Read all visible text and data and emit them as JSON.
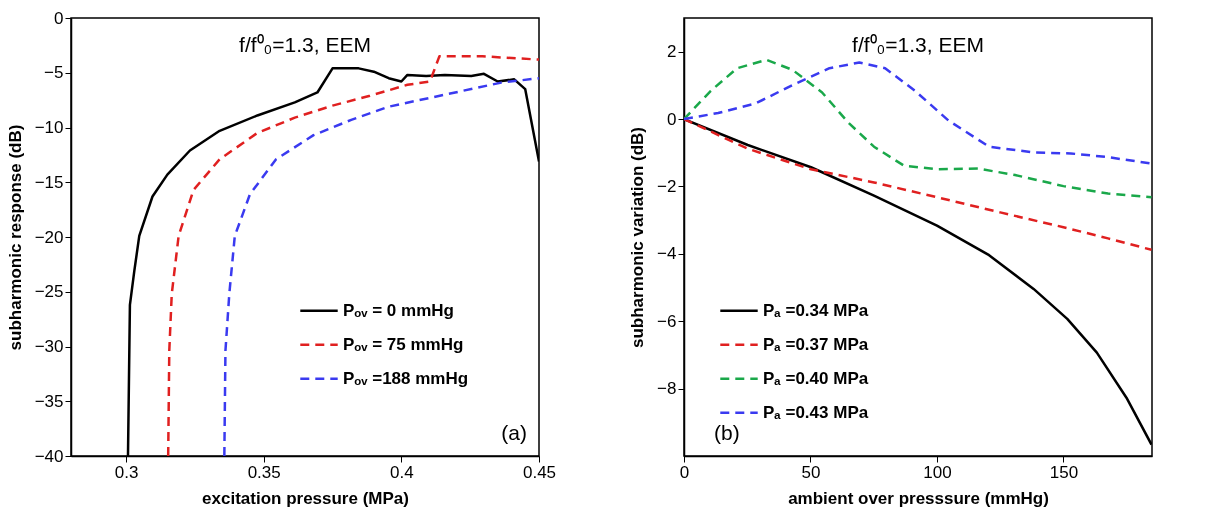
{
  "chart_data": [
    {
      "type": "line",
      "xlabel": "excitation pressure (MPa)",
      "ylabel": "subharmonic response (dB)",
      "xlim": [
        0.28,
        0.45
      ],
      "xticks": [
        0.3,
        0.35,
        0.4,
        0.45
      ],
      "ylim": [
        -40,
        0
      ],
      "yticks": [
        -40,
        -35,
        -30,
        -25,
        -20,
        -15,
        -10,
        -5,
        0
      ],
      "grid": false,
      "legend": "bottom right",
      "annotations": [
        "f/f⁰₀=1.3, EEM",
        "(a)"
      ],
      "series": [
        {
          "name": "Pₒᵥ = 0 mmHg",
          "color": "#000000",
          "line_style": "solid",
          "x": [
            0.3007,
            0.3014,
            0.303,
            0.3048,
            0.3096,
            0.315,
            0.3232,
            0.334,
            0.3477,
            0.3613,
            0.3695,
            0.375,
            0.3845,
            0.39,
            0.3954,
            0.4,
            0.4022,
            0.409,
            0.4158,
            0.4254,
            0.43,
            0.435,
            0.441,
            0.445,
            0.45
          ],
          "values": [
            -40,
            -26.2,
            -23.1,
            -19.9,
            -16.3,
            -14.3,
            -12.1,
            -10.3,
            -8.9,
            -7.7,
            -6.8,
            -4.6,
            -4.6,
            -4.9,
            -5.5,
            -5.8,
            -5.2,
            -5.3,
            -5.2,
            -5.3,
            -5.1,
            -5.8,
            -5.6,
            -6.5,
            -13.1
          ]
        },
        {
          "name": "Pₒᵥ = 75 mmHg",
          "color": "#e02020",
          "line_style": "dashed",
          "x": [
            0.3153,
            0.3157,
            0.3166,
            0.3191,
            0.3245,
            0.334,
            0.3477,
            0.3613,
            0.375,
            0.3886,
            0.4022,
            0.4104,
            0.4138,
            0.4295,
            0.45
          ],
          "values": [
            -40,
            -30.4,
            -25.2,
            -19.9,
            -15.7,
            -12.9,
            -10.5,
            -9.1,
            -8.0,
            -7.1,
            -6.1,
            -5.8,
            -3.5,
            -3.5,
            -3.8
          ]
        },
        {
          "name": "Pₒᵥ =188 mmHg",
          "color": "#3a3af0",
          "line_style": "dashed",
          "x": [
            0.3357,
            0.3361,
            0.3375,
            0.3395,
            0.345,
            0.3545,
            0.3681,
            0.3818,
            0.3954,
            0.4158,
            0.4363,
            0.45
          ],
          "values": [
            -40,
            -30.4,
            -25.2,
            -19.9,
            -16.1,
            -12.9,
            -10.7,
            -9.3,
            -8.1,
            -7.0,
            -5.9,
            -5.5
          ]
        }
      ]
    },
    {
      "type": "line",
      "xlabel": "ambient over presssure (mmHg)",
      "ylabel": "subharmonic variation (dB)",
      "xlim": [
        0,
        185
      ],
      "xticks": [
        0,
        50,
        100,
        150
      ],
      "ylim": [
        -10,
        3
      ],
      "yticks": [
        -8,
        -6,
        -4,
        -2,
        0,
        2
      ],
      "grid": false,
      "legend": "bottom left",
      "annotations": [
        "f/f⁰₀=1.3, EEM",
        "(b)"
      ],
      "series": [
        {
          "name": "Pₐ =0.34 MPa",
          "color": "#000000",
          "line_style": "solid",
          "x": [
            0,
            25.2,
            50.2,
            75.1,
            100,
            120.6,
            138.2,
            151.5,
            163.2,
            174.9,
            184.8
          ],
          "values": [
            0,
            -0.77,
            -1.43,
            -2.27,
            -3.16,
            -4.04,
            -5.04,
            -5.93,
            -6.93,
            -8.27,
            -9.66
          ]
        },
        {
          "name": "Pₐ =0.37 MPa",
          "color": "#e02020",
          "line_style": "dashed",
          "x": [
            0,
            25.2,
            50.2,
            75.1,
            100,
            125,
            150,
            167.6,
            184.8
          ],
          "values": [
            0,
            -0.88,
            -1.49,
            -1.88,
            -2.32,
            -2.77,
            -3.21,
            -3.54,
            -3.88
          ]
        },
        {
          "name": "Pₐ =0.40 MPa",
          "color": "#1aa84a",
          "line_style": "dashed",
          "x": [
            0,
            10.6,
            21,
            32.6,
            42.9,
            54.6,
            64.9,
            75.1,
            86.9,
            100,
            116.2,
            130.9,
            150,
            167.6,
            184.8
          ],
          "values": [
            0,
            0.84,
            1.51,
            1.76,
            1.46,
            0.79,
            -0.1,
            -0.82,
            -1.38,
            -1.49,
            -1.47,
            -1.66,
            -1.99,
            -2.21,
            -2.32
          ]
        },
        {
          "name": "Pₐ =0.43 MPa",
          "color": "#3a3af0",
          "line_style": "dashed",
          "x": [
            0,
            13.5,
            28.2,
            42.9,
            57.5,
            69.3,
            79.5,
            91.3,
            104.5,
            120.6,
            138.2,
            152.9,
            167.6,
            184.8
          ],
          "values": [
            0,
            0.18,
            0.46,
            1.01,
            1.51,
            1.68,
            1.51,
            0.84,
            -0.04,
            -0.82,
            -0.99,
            -1.02,
            -1.13,
            -1.32
          ]
        }
      ]
    }
  ]
}
